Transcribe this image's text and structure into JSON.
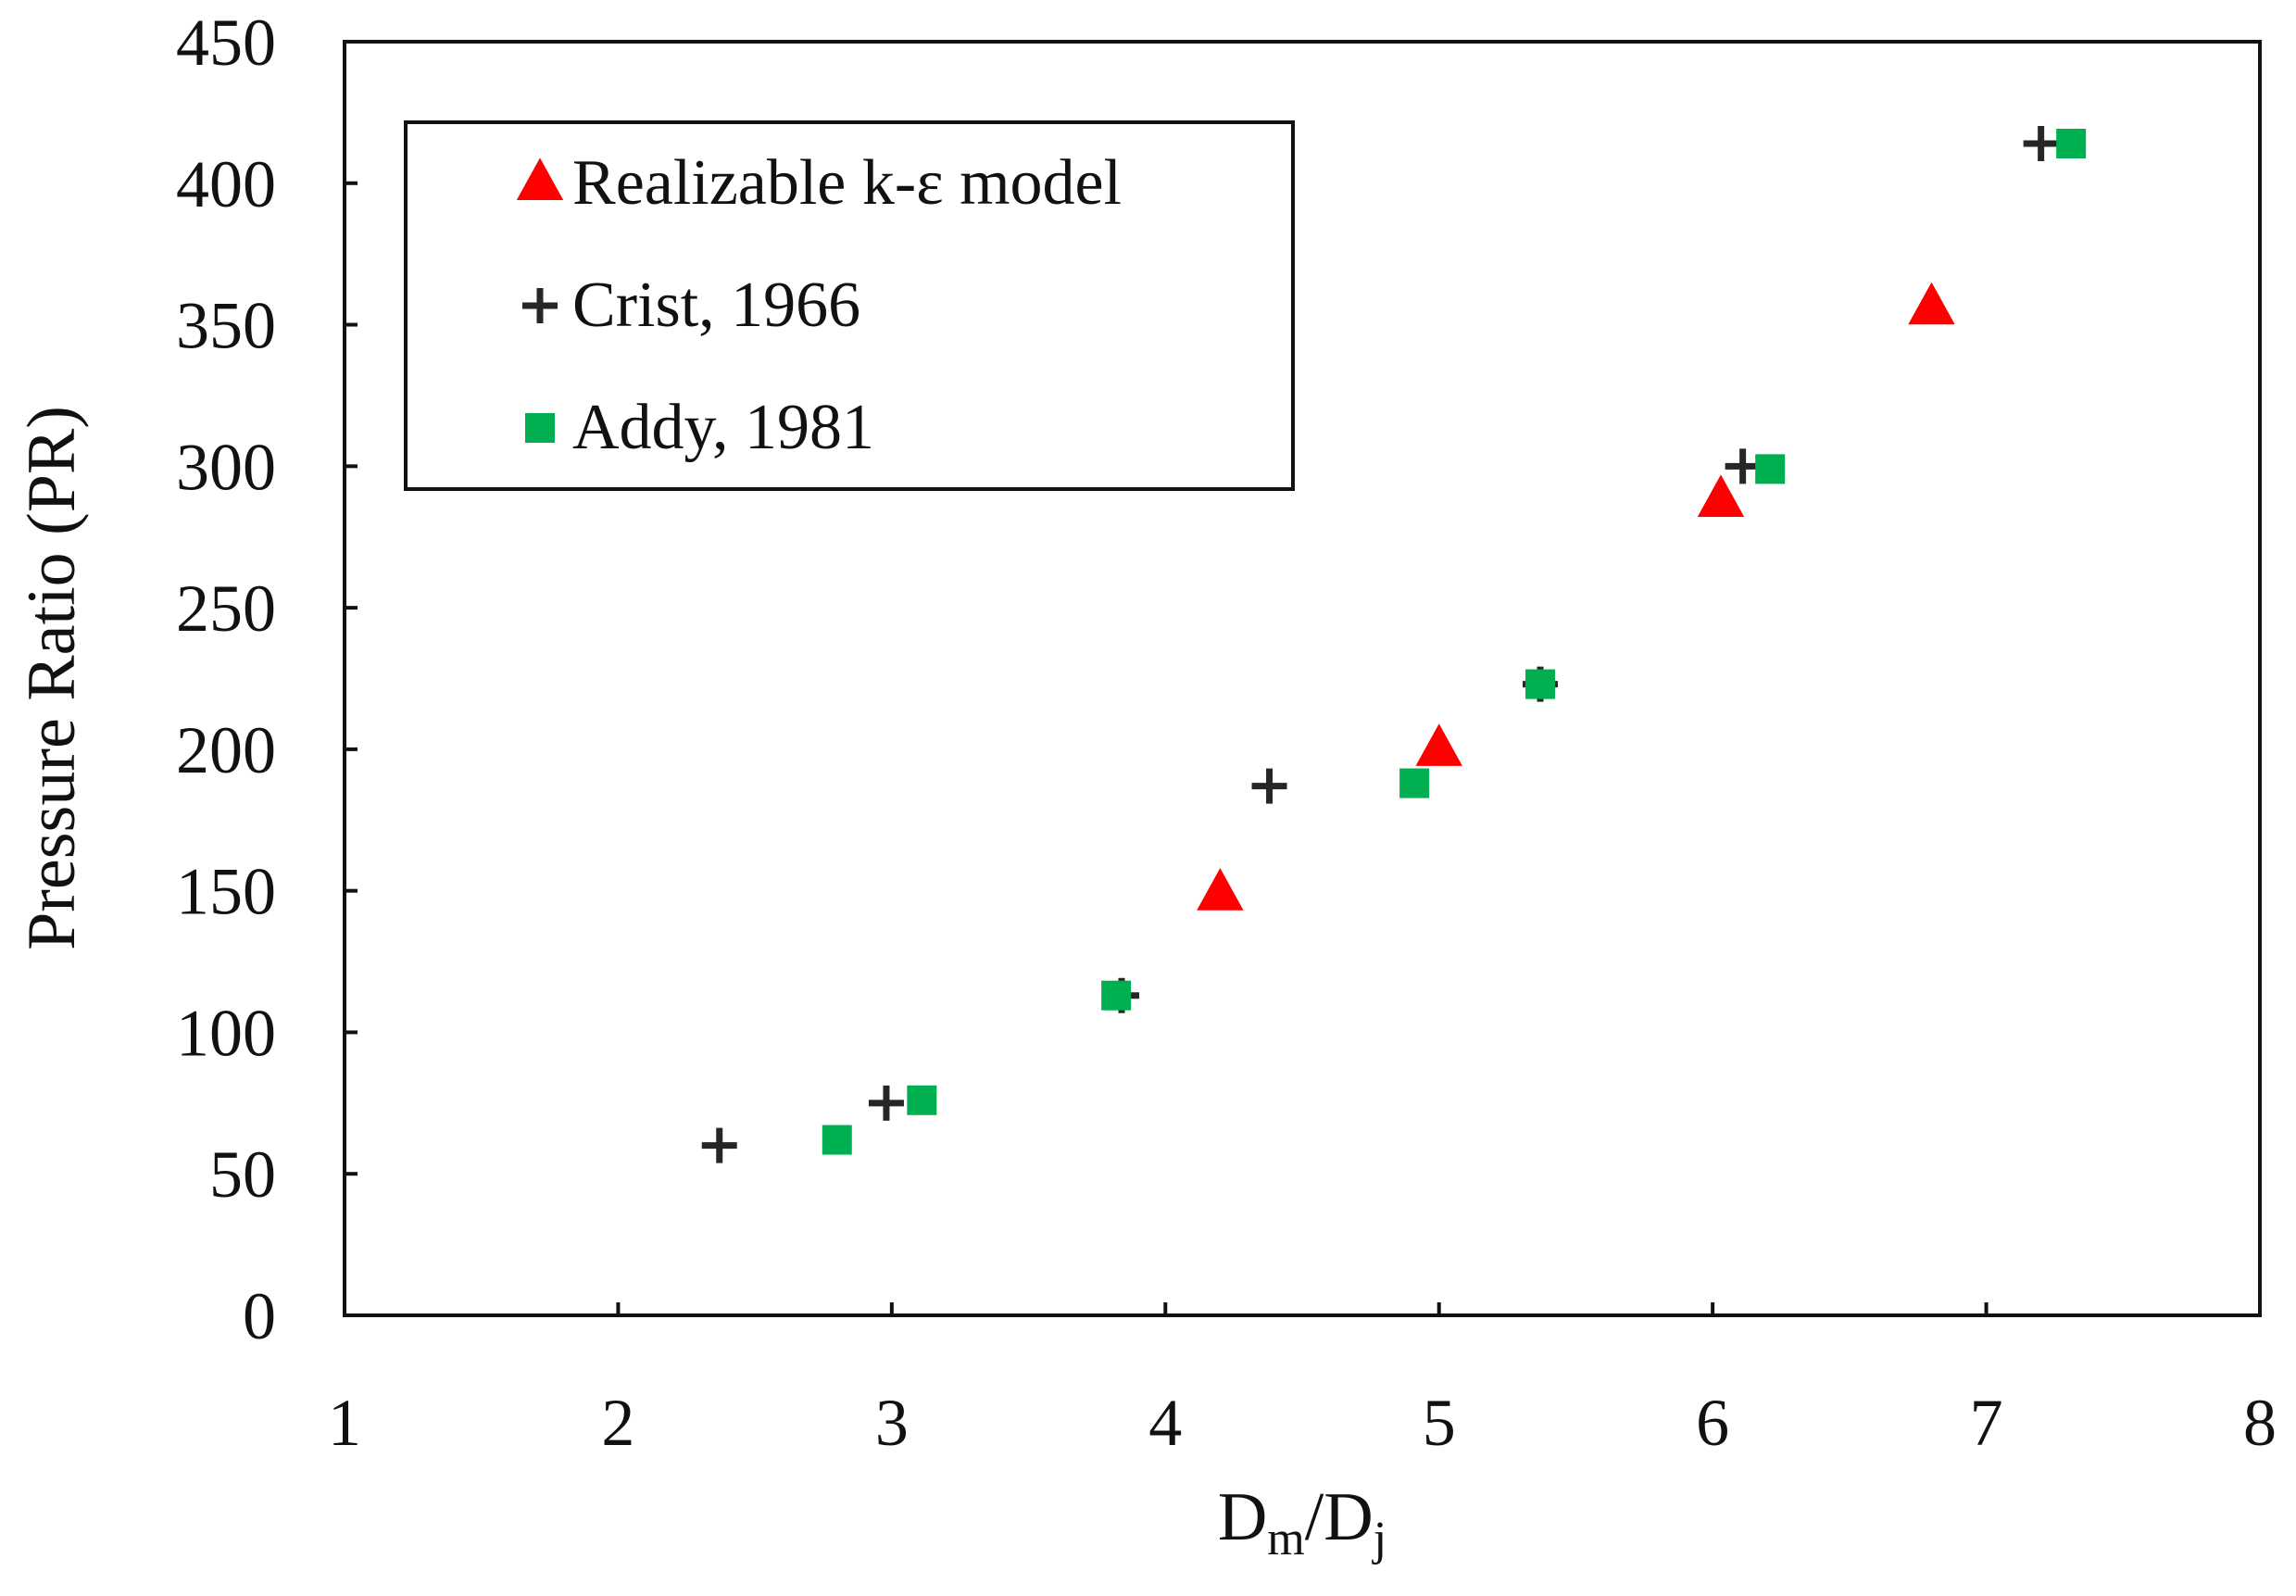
{
  "chart_data": {
    "type": "scatter",
    "title": "",
    "xlabel": "Dm/Dj",
    "xlabel_parts": {
      "main1": "D",
      "sub1": "m",
      "slash": "/",
      "main2": "D",
      "sub2": "j"
    },
    "ylabel": "Pressure Ratio (PR)",
    "xlim": [
      1,
      8
    ],
    "ylim": [
      0,
      450
    ],
    "xticks": [
      "1",
      "2",
      "3",
      "4",
      "5",
      "6",
      "7",
      "8"
    ],
    "yticks": [
      "0",
      "50",
      "100",
      "150",
      "200",
      "250",
      "300",
      "350",
      "400",
      "450"
    ],
    "grid": false,
    "legend_position": "top-left",
    "series": [
      {
        "name": "Realizable k-ε model",
        "marker": "triangle",
        "color": "#ff0000",
        "x": [
          4.2,
          5.0,
          6.03,
          6.8
        ],
        "y": [
          149,
          200,
          288,
          356
        ]
      },
      {
        "name": "Crist, 1966",
        "marker": "plus",
        "color": "#262626",
        "x": [
          2.37,
          2.98,
          3.84,
          4.38,
          5.37,
          6.11,
          7.2
        ],
        "y": [
          60,
          75,
          113,
          187,
          223,
          300,
          414
        ]
      },
      {
        "name": "Addy, 1981",
        "marker": "square",
        "color": "#00b050",
        "x": [
          2.8,
          3.11,
          3.82,
          4.91,
          5.37,
          6.21,
          7.31
        ],
        "y": [
          62,
          76,
          113,
          188,
          223,
          299,
          414
        ]
      }
    ]
  }
}
